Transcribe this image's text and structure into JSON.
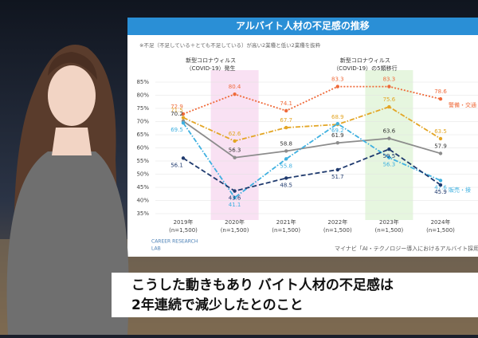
{
  "chart_data": {
    "type": "line",
    "title": "アルバイト人材の不足感の推移",
    "subtitle": "※不足（不足している＋とても不足している）が高い2業種と低い2業種を抜粋",
    "categories": [
      "2019年",
      "2020年",
      "2021年",
      "2022年",
      "2023年",
      "2024年"
    ],
    "sample_sizes": [
      "(n=1,500)",
      "(n=1,500)",
      "(n=1,500)",
      "(n=1,500)",
      "(n=1,500)",
      "(n=1,500)"
    ],
    "series": [
      {
        "name": "警備・交通",
        "color": "#ef6a3a",
        "style": "dotted",
        "values": [
          72.9,
          80.4,
          74.1,
          83.3,
          83.3,
          78.6
        ]
      },
      {
        "color": "#e3a524",
        "style": "dashdot",
        "values": [
          71.5,
          62.6,
          67.7,
          68.9,
          75.6,
          63.5
        ]
      },
      {
        "color": "#8c8c8c",
        "style": "solid",
        "values": [
          70.2,
          56.3,
          58.8,
          61.9,
          63.6,
          57.9
        ]
      },
      {
        "name": "販売・接",
        "color": "#3eb0e0",
        "style": "dashdot",
        "values": [
          69.5,
          41.1,
          55.8,
          69.2,
          56.3,
          47.6
        ]
      },
      {
        "color": "#1f3a6e",
        "style": "dashed",
        "values": [
          56.1,
          43.6,
          48.5,
          51.7,
          59.5,
          45.9
        ]
      }
    ],
    "highlights": [
      {
        "category": "2020年",
        "color": "#f9e1f3",
        "label": [
          "新型コロナウィルス",
          "（COVID-19）発生"
        ]
      },
      {
        "category": "2023年",
        "color": "#e6f6df",
        "label": [
          "新型コロナウィルス",
          "（COVID-19）の5類移行"
        ]
      }
    ],
    "ylim": [
      35,
      85
    ],
    "yticks": [
      {
        "value": 35,
        "label": "35%"
      },
      {
        "value": 40,
        "label": "40%"
      },
      {
        "value": 45,
        "label": "45%"
      },
      {
        "value": 50,
        "label": "50%"
      },
      {
        "value": 55,
        "label": "55%"
      },
      {
        "value": 60,
        "label": "60%"
      },
      {
        "value": 65,
        "label": "65%"
      },
      {
        "value": 70,
        "label": "70%"
      },
      {
        "value": 75,
        "label": "75%"
      },
      {
        "value": 80,
        "label": "80%"
      },
      {
        "value": 85,
        "label": "85%"
      }
    ],
    "grid": true,
    "source": "マイナビ「AI・テクノロジー導入におけるアルバイト採用状況」",
    "logo": [
      "CAREER RESEARCH",
      "LAB"
    ]
  },
  "caption": [
    "こうした動きもあり バイト人材の不足感は",
    "2年連続で減少したとのこと"
  ]
}
